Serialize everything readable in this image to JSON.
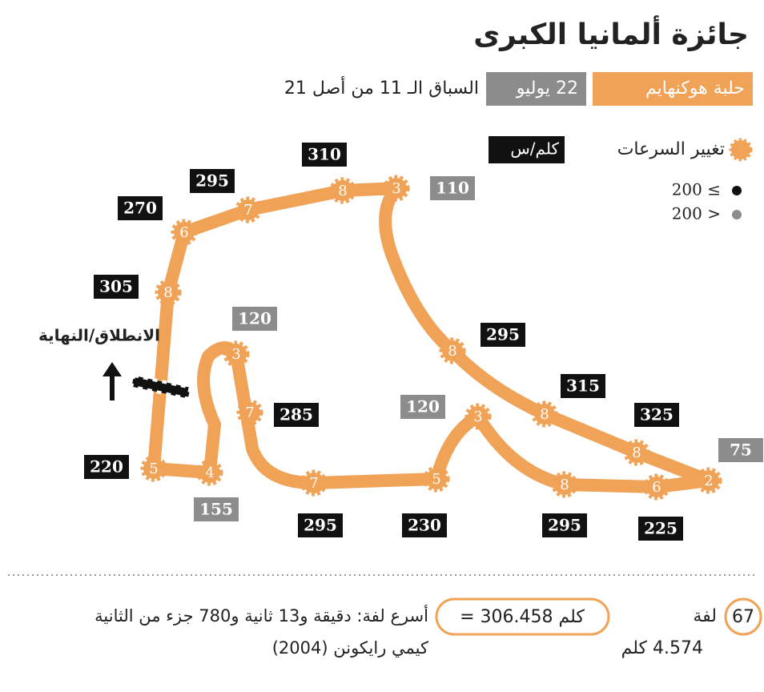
{
  "header": {
    "title": "جائزة ألمانيا الكبرى",
    "circuit": "حلبة هوكنهايم",
    "date": "22 يوليو",
    "round": "السباق الـ 11 من أصل 21"
  },
  "legend": {
    "label": "تغيير السرعات",
    "unit": "كلم/س",
    "fast": "200 ≤",
    "slow": "200 >",
    "fast_color": "#111111",
    "slow_color": "#8c8c8c"
  },
  "start_label": "الانطلاق/النهاية",
  "gears": [
    6,
    7,
    8,
    3,
    8,
    3,
    7,
    5,
    4,
    7,
    5,
    3,
    8,
    8,
    8,
    2,
    6,
    8
  ],
  "speeds": [
    {
      "value": 310,
      "color": "#111111"
    },
    {
      "value": 295,
      "color": "#111111"
    },
    {
      "value": 270,
      "color": "#111111"
    },
    {
      "value": 110,
      "color": "#8c8c8c"
    },
    {
      "value": 305,
      "color": "#111111"
    },
    {
      "value": 120,
      "color": "#8c8c8c"
    },
    {
      "value": 295,
      "color": "#111111"
    },
    {
      "value": 120,
      "color": "#8c8c8c"
    },
    {
      "value": 285,
      "color": "#111111"
    },
    {
      "value": 315,
      "color": "#111111"
    },
    {
      "value": 325,
      "color": "#111111"
    },
    {
      "value": 75,
      "color": "#8c8c8c"
    },
    {
      "value": 220,
      "color": "#111111"
    },
    {
      "value": 155,
      "color": "#8c8c8c"
    },
    {
      "value": 295,
      "color": "#111111"
    },
    {
      "value": 230,
      "color": "#111111"
    },
    {
      "value": 295,
      "color": "#111111"
    },
    {
      "value": 225,
      "color": "#111111"
    }
  ],
  "footer": {
    "laps": "67",
    "laps_label": "لفة",
    "lap_length": "4.574 كلم",
    "distance": "= 306.458 كلم",
    "fastest_lap": "أسرع لفة: دقيقة و13 ثانية و780 جزء من الثانية",
    "driver": "كيمي رايكونن (2004)"
  }
}
